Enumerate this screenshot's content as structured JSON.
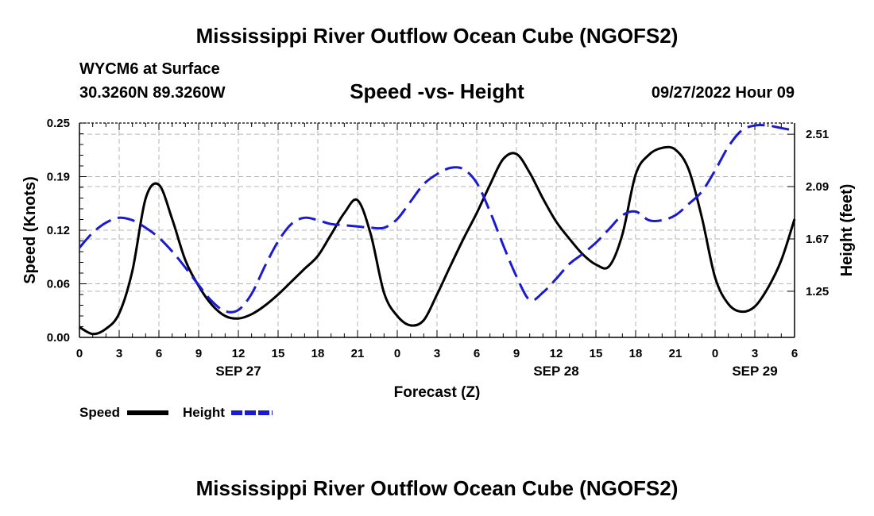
{
  "header": {
    "title": "Mississippi River Outflow Ocean Cube (NGOFS2)",
    "station": "WYCM6 at Surface",
    "coords": "30.3260N  89.3260W",
    "subtitle": "Speed -vs- Height",
    "datetime": "09/27/2022 Hour 09"
  },
  "footer": {
    "title": "Mississippi River Outflow Ocean Cube (NGOFS2)"
  },
  "legend": {
    "speed_label": "Speed",
    "height_label": "Height"
  },
  "colors": {
    "speed": "#000000",
    "height": "#1a1ad0",
    "grid": "#b4b4b4"
  },
  "chart_data": {
    "type": "line",
    "title": "Speed -vs- Height",
    "xlabel": "Forecast (Z)",
    "ylabel": "Speed (Knots)",
    "y2label": "Height (feet)",
    "ylim": [
      0,
      0.25
    ],
    "y2lim": [
      0.88,
      2.6
    ],
    "xlim": [
      0,
      54
    ],
    "x_ticks": [
      0,
      3,
      6,
      9,
      12,
      15,
      18,
      21,
      24,
      27,
      30,
      33,
      36,
      39,
      42,
      45,
      48,
      51,
      54
    ],
    "x_tick_labels": [
      "0",
      "3",
      "6",
      "9",
      "12",
      "15",
      "18",
      "21",
      "0",
      "3",
      "6",
      "9",
      "12",
      "15",
      "18",
      "21",
      "0",
      "3",
      "6"
    ],
    "y_ticks": [
      0,
      0.0625,
      0.125,
      0.1875,
      0.25
    ],
    "y_tick_labels": [
      "0.00",
      "0.06",
      "0.12",
      "0.19",
      "0.25"
    ],
    "y2_ticks": [
      1.25,
      1.67,
      2.09,
      2.51
    ],
    "y2_tick_labels": [
      "1.25",
      "1.67",
      "2.09",
      "2.51"
    ],
    "date_labels": [
      {
        "x": 12,
        "label": "SEP 27"
      },
      {
        "x": 36,
        "label": "SEP 28"
      },
      {
        "x": 51,
        "label": "SEP 29"
      }
    ],
    "series": [
      {
        "name": "Speed",
        "axis": "left",
        "style": "solid",
        "x": [
          0,
          1,
          2,
          3,
          4,
          5,
          6,
          7,
          8,
          9,
          10,
          11,
          12,
          13,
          14,
          15,
          16,
          17,
          18,
          19,
          20,
          21,
          22,
          23,
          24,
          25,
          26,
          27,
          28,
          29,
          30,
          31,
          32,
          33,
          34,
          35,
          36,
          37,
          38,
          39,
          40,
          41,
          42,
          43,
          44,
          45,
          46,
          47,
          48,
          49,
          50,
          51,
          52,
          53,
          54
        ],
        "values": [
          0.012,
          0.004,
          0.01,
          0.028,
          0.078,
          0.162,
          0.178,
          0.138,
          0.09,
          0.06,
          0.038,
          0.025,
          0.022,
          0.027,
          0.037,
          0.05,
          0.065,
          0.08,
          0.095,
          0.12,
          0.145,
          0.16,
          0.12,
          0.052,
          0.025,
          0.014,
          0.02,
          0.05,
          0.083,
          0.115,
          0.145,
          0.178,
          0.208,
          0.214,
          0.192,
          0.162,
          0.135,
          0.115,
          0.097,
          0.085,
          0.083,
          0.12,
          0.19,
          0.213,
          0.221,
          0.219,
          0.196,
          0.14,
          0.07,
          0.039,
          0.03,
          0.036,
          0.058,
          0.09,
          0.138
        ]
      },
      {
        "name": "Height",
        "axis": "right",
        "style": "dashed",
        "x": [
          0,
          1,
          2,
          3,
          4,
          5,
          6,
          7,
          8,
          9,
          10,
          11,
          12,
          13,
          14,
          15,
          16,
          17,
          18,
          19,
          20,
          21,
          22,
          23,
          24,
          25,
          26,
          27,
          28,
          29,
          30,
          31,
          32,
          33,
          34,
          35,
          36,
          37,
          38,
          39,
          40,
          41,
          42,
          43,
          44,
          45,
          46,
          47,
          48,
          49,
          50,
          51,
          52,
          53,
          54
        ],
        "values": [
          1.6,
          1.72,
          1.8,
          1.84,
          1.82,
          1.76,
          1.68,
          1.57,
          1.44,
          1.3,
          1.17,
          1.09,
          1.1,
          1.23,
          1.45,
          1.65,
          1.79,
          1.84,
          1.82,
          1.79,
          1.78,
          1.77,
          1.76,
          1.76,
          1.83,
          1.97,
          2.11,
          2.19,
          2.24,
          2.23,
          2.12,
          1.89,
          1.62,
          1.37,
          1.18,
          1.24,
          1.35,
          1.47,
          1.55,
          1.64,
          1.75,
          1.86,
          1.89,
          1.82,
          1.82,
          1.86,
          1.95,
          2.05,
          2.22,
          2.41,
          2.54,
          2.58,
          2.58,
          2.56,
          2.54
        ]
      }
    ]
  }
}
